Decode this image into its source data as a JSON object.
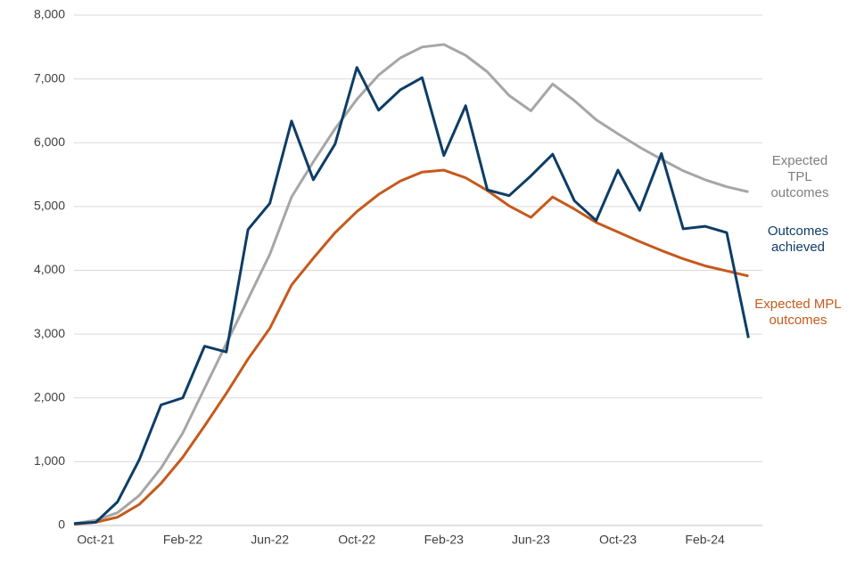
{
  "chart_data": {
    "type": "line",
    "categories": [
      null,
      "Oct-21",
      null,
      null,
      null,
      "Feb-22",
      null,
      null,
      null,
      "Jun-22",
      null,
      null,
      null,
      "Oct-22",
      null,
      null,
      null,
      "Feb-23",
      null,
      null,
      null,
      "Jun-23",
      null,
      null,
      null,
      "Oct-23",
      null,
      null,
      null,
      "Feb-24",
      null,
      null
    ],
    "series": [
      {
        "name": "Expected TPL outcomes",
        "color": "#a6a6a6",
        "values": [
          30,
          80,
          200,
          470,
          900,
          1450,
          2150,
          2850,
          3550,
          4250,
          5150,
          5700,
          6220,
          6680,
          7060,
          7330,
          7500,
          7540,
          7370,
          7110,
          6740,
          6500,
          6920,
          6660,
          6360,
          6140,
          5930,
          5740,
          5560,
          5420,
          5310,
          5230
        ]
      },
      {
        "name": "Expected MPL outcomes",
        "color": "#c55a1c",
        "values": [
          20,
          50,
          130,
          330,
          660,
          1070,
          1560,
          2070,
          2610,
          3090,
          3770,
          4190,
          4590,
          4920,
          5190,
          5400,
          5540,
          5570,
          5450,
          5250,
          5010,
          4830,
          5150,
          4960,
          4750,
          4600,
          4450,
          4310,
          4180,
          4070,
          3990,
          3910
        ]
      },
      {
        "name": "Outcomes achieved",
        "color": "#0e3d66",
        "values": [
          30,
          50,
          370,
          1030,
          1890,
          2000,
          2810,
          2720,
          4640,
          5050,
          6340,
          5420,
          5980,
          7180,
          6510,
          6830,
          7020,
          5800,
          6580,
          5260,
          5170,
          5480,
          5820,
          5090,
          4780,
          5570,
          4940,
          5830,
          4650,
          4690,
          4590,
          2940
        ]
      }
    ],
    "ylim": [
      0,
      8000
    ],
    "yticks": [
      0,
      {
        "value": 1000,
        "label": "1,000"
      },
      {
        "value": 2000,
        "label": "2,000"
      },
      {
        "value": 3000,
        "label": "3,000"
      },
      {
        "value": 4000,
        "label": "4,000"
      },
      {
        "value": 5000,
        "label": "5,000"
      },
      {
        "value": 6000,
        "label": "6,000"
      },
      {
        "value": 7000,
        "label": "7,000"
      },
      {
        "value": 8000,
        "label": "8,000"
      }
    ],
    "grid": true
  }
}
